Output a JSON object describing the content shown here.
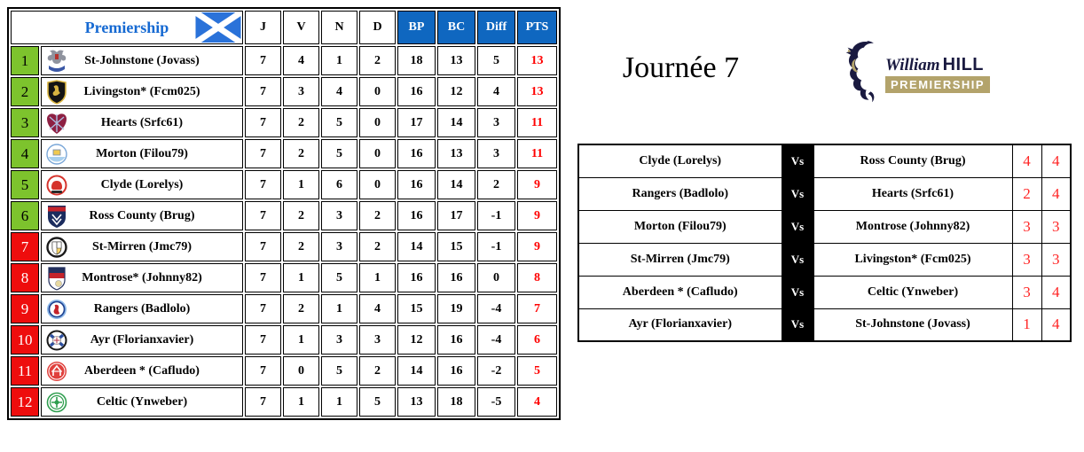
{
  "standings": {
    "title": "Premiership",
    "columns": [
      "J",
      "V",
      "N",
      "D",
      "BP",
      "BC",
      "Diff",
      "PTS"
    ],
    "rows": [
      {
        "pos": 1,
        "zone": "green",
        "club": "st-johnstone",
        "team": "St-Johnstone (Jovass)",
        "j": 7,
        "v": 4,
        "n": 1,
        "d": 2,
        "bp": 18,
        "bc": 13,
        "diff": 5,
        "pts": 13
      },
      {
        "pos": 2,
        "zone": "green",
        "club": "livingston",
        "team": "Livingston* (Fcm025)",
        "j": 7,
        "v": 3,
        "n": 4,
        "d": 0,
        "bp": 16,
        "bc": 12,
        "diff": 4,
        "pts": 13
      },
      {
        "pos": 3,
        "zone": "green",
        "club": "hearts",
        "team": "Hearts (Srfc61)",
        "j": 7,
        "v": 2,
        "n": 5,
        "d": 0,
        "bp": 17,
        "bc": 14,
        "diff": 3,
        "pts": 11
      },
      {
        "pos": 4,
        "zone": "green",
        "club": "morton",
        "team": "Morton (Filou79)",
        "j": 7,
        "v": 2,
        "n": 5,
        "d": 0,
        "bp": 16,
        "bc": 13,
        "diff": 3,
        "pts": 11
      },
      {
        "pos": 5,
        "zone": "green",
        "club": "clyde",
        "team": "Clyde (Lorelys)",
        "j": 7,
        "v": 1,
        "n": 6,
        "d": 0,
        "bp": 16,
        "bc": 14,
        "diff": 2,
        "pts": 9
      },
      {
        "pos": 6,
        "zone": "green",
        "club": "ross-county",
        "team": "Ross County (Brug)",
        "j": 7,
        "v": 2,
        "n": 3,
        "d": 2,
        "bp": 16,
        "bc": 17,
        "diff": -1,
        "pts": 9
      },
      {
        "pos": 7,
        "zone": "red",
        "club": "st-mirren",
        "team": "St-Mirren (Jmc79)",
        "j": 7,
        "v": 2,
        "n": 3,
        "d": 2,
        "bp": 14,
        "bc": 15,
        "diff": -1,
        "pts": 9
      },
      {
        "pos": 8,
        "zone": "red",
        "club": "montrose",
        "team": "Montrose* (Johnny82)",
        "j": 7,
        "v": 1,
        "n": 5,
        "d": 1,
        "bp": 16,
        "bc": 16,
        "diff": 0,
        "pts": 8
      },
      {
        "pos": 9,
        "zone": "red",
        "club": "rangers",
        "team": "Rangers (Badlolo)",
        "j": 7,
        "v": 2,
        "n": 1,
        "d": 4,
        "bp": 15,
        "bc": 19,
        "diff": -4,
        "pts": 7
      },
      {
        "pos": 10,
        "zone": "red",
        "club": "ayr",
        "team": "Ayr (Florianxavier)",
        "j": 7,
        "v": 1,
        "n": 3,
        "d": 3,
        "bp": 12,
        "bc": 16,
        "diff": -4,
        "pts": 6
      },
      {
        "pos": 11,
        "zone": "red",
        "club": "aberdeen",
        "team": "Aberdeen * (Cafludo)",
        "j": 7,
        "v": 0,
        "n": 5,
        "d": 2,
        "bp": 14,
        "bc": 16,
        "diff": -2,
        "pts": 5
      },
      {
        "pos": 12,
        "zone": "red",
        "club": "celtic",
        "team": "Celtic (Ynweber)",
        "j": 7,
        "v": 1,
        "n": 1,
        "d": 5,
        "bp": 13,
        "bc": 18,
        "diff": -5,
        "pts": 4
      }
    ]
  },
  "fixtures": {
    "title": "Journée 7",
    "vs_label": "Vs",
    "rows": [
      {
        "home": "Clyde (Lorelys)",
        "away": "Ross County (Brug)",
        "home_score": 4,
        "away_score": 4
      },
      {
        "home": "Rangers (Badlolo)",
        "away": "Hearts (Srfc61)",
        "home_score": 2,
        "away_score": 4
      },
      {
        "home": "Morton (Filou79)",
        "away": "Montrose (Johnny82)",
        "home_score": 3,
        "away_score": 3
      },
      {
        "home": "St-Mirren (Jmc79)",
        "away": "Livingston* (Fcm025)",
        "home_score": 3,
        "away_score": 3
      },
      {
        "home": "Aberdeen * (Cafludo)",
        "away": "Celtic (Ynweber)",
        "home_score": 3,
        "away_score": 4
      },
      {
        "home": "Ayr (Florianxavier)",
        "away": "St-Johnstone (Jovass)",
        "home_score": 1,
        "away_score": 4
      }
    ]
  },
  "brand": {
    "script": "William",
    "hill": "HILL",
    "banner": "PREMIERSHIP"
  },
  "colors": {
    "header_blue": "#0f67c0",
    "title_blue": "#1569d2",
    "promotion_green": "#7dc32d",
    "relegation_red": "#ee0d0d",
    "points_red": "#ff0000",
    "score_red": "#ff2323",
    "vs_black": "#000000",
    "flag_blue": "#2a72d9",
    "brand_navy": "#1a1a40",
    "brand_gold": "#b3a36b"
  }
}
